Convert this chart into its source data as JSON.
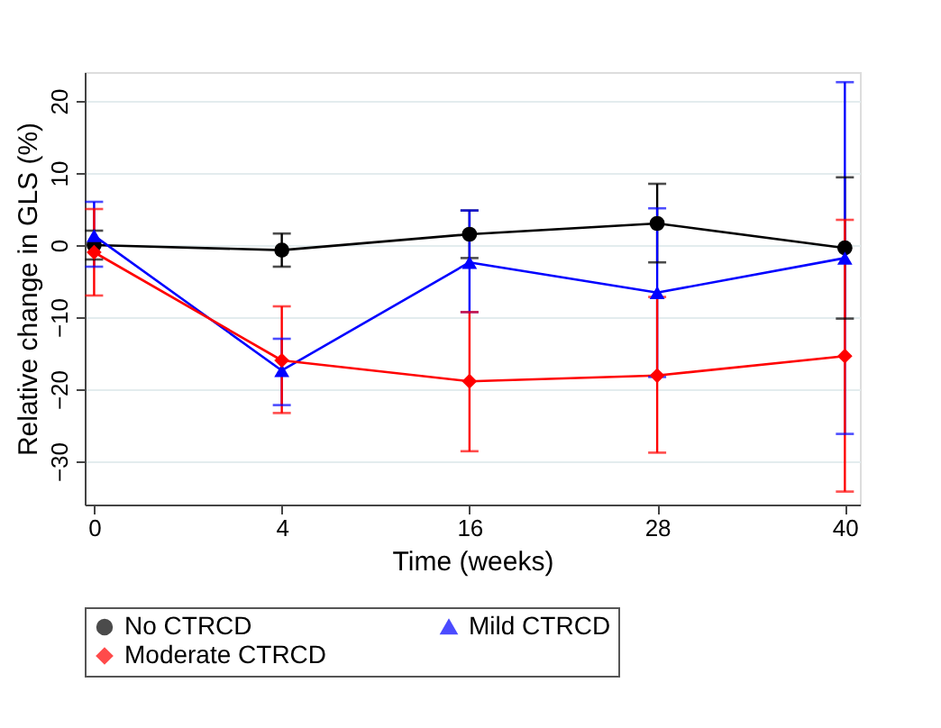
{
  "chart_data": {
    "type": "line",
    "xlabel": "Time (weeks)",
    "ylabel": "Relative change in GLS (%)",
    "categories": [
      "0",
      "4",
      "16",
      "28",
      "40"
    ],
    "series": [
      {
        "name": "No CTRCD",
        "color": "#000000",
        "marker": "circle",
        "values": [
          0,
          -0.7,
          1.5,
          3.0,
          -0.4
        ],
        "errors": [
          [
            -2,
            2
          ],
          [
            -3,
            1.6
          ],
          [
            -1.8,
            4.8
          ],
          [
            -2.4,
            8.5
          ],
          [
            -10.2,
            9.4
          ]
        ]
      },
      {
        "name": "Mild CTRCD",
        "color": "#0000ff",
        "marker": "triangle",
        "values": [
          1.3,
          -17.4,
          -2.4,
          -6.6,
          -1.8
        ],
        "errors": [
          [
            -3,
            6
          ],
          [
            -22.2,
            -13
          ],
          [
            -9.3,
            4.8
          ],
          [
            -18.3,
            5.1
          ],
          [
            -26.2,
            22.6
          ]
        ]
      },
      {
        "name": "Moderate CTRCD",
        "color": "#ff0000",
        "marker": "diamond",
        "values": [
          -1,
          -16,
          -18.9,
          -18.1,
          -15.4
        ],
        "errors": [
          [
            -7,
            5
          ],
          [
            -23.3,
            -8.5
          ],
          [
            -28.6,
            -9.3
          ],
          [
            -28.8,
            -7.2
          ],
          [
            -34.2,
            3.5
          ]
        ]
      }
    ],
    "ylim": [
      -36,
      24
    ],
    "yticks": [
      -30,
      -20,
      -10,
      0,
      10,
      20
    ],
    "grid": "y",
    "legend": "bottom"
  }
}
